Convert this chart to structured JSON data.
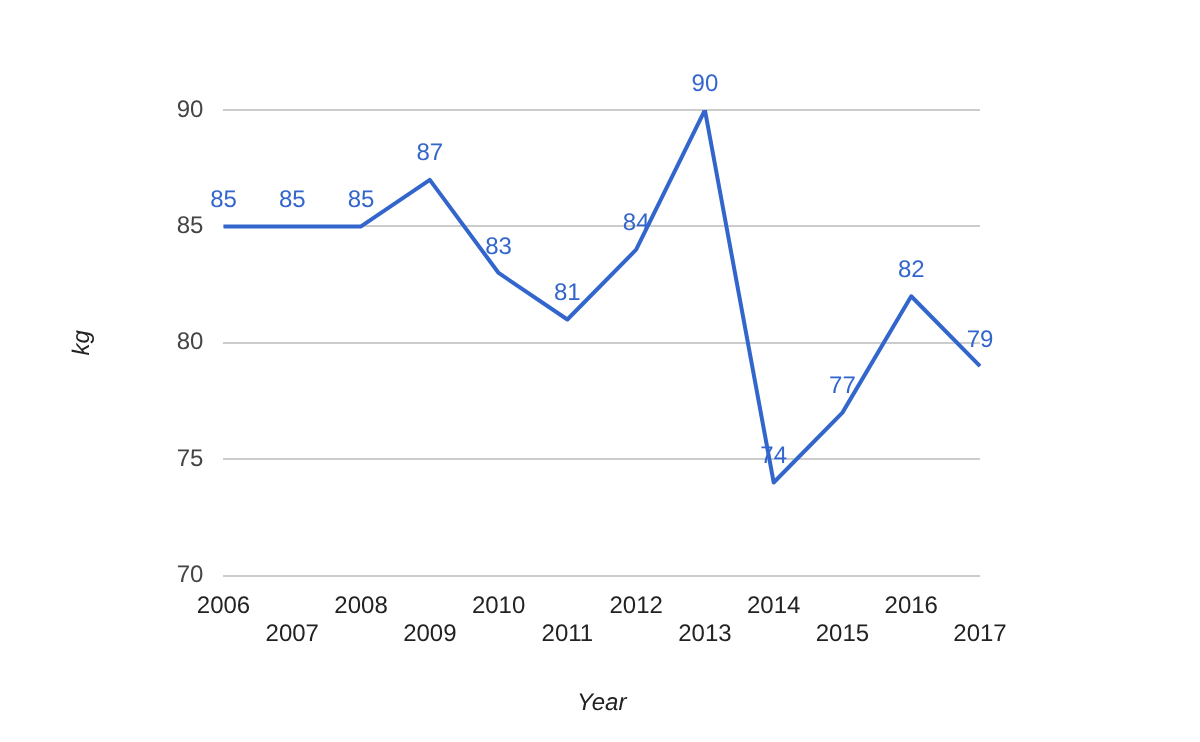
{
  "chart_data": {
    "type": "line",
    "xlabel": "Year",
    "ylabel": "kg",
    "categories": [
      "2006",
      "2007",
      "2008",
      "2009",
      "2010",
      "2011",
      "2012",
      "2013",
      "2014",
      "2015",
      "2016",
      "2017"
    ],
    "series": [
      {
        "color": "#3366cc",
        "values": [
          85,
          85,
          85,
          87,
          83,
          81,
          84,
          90,
          74,
          77,
          82,
          79
        ]
      }
    ],
    "ylim": [
      70,
      90
    ],
    "yticks": [
      70,
      75,
      80,
      85,
      90
    ],
    "grid": "y",
    "legend": false,
    "marker": "none",
    "line_style": "solid",
    "data_labels": true
  }
}
